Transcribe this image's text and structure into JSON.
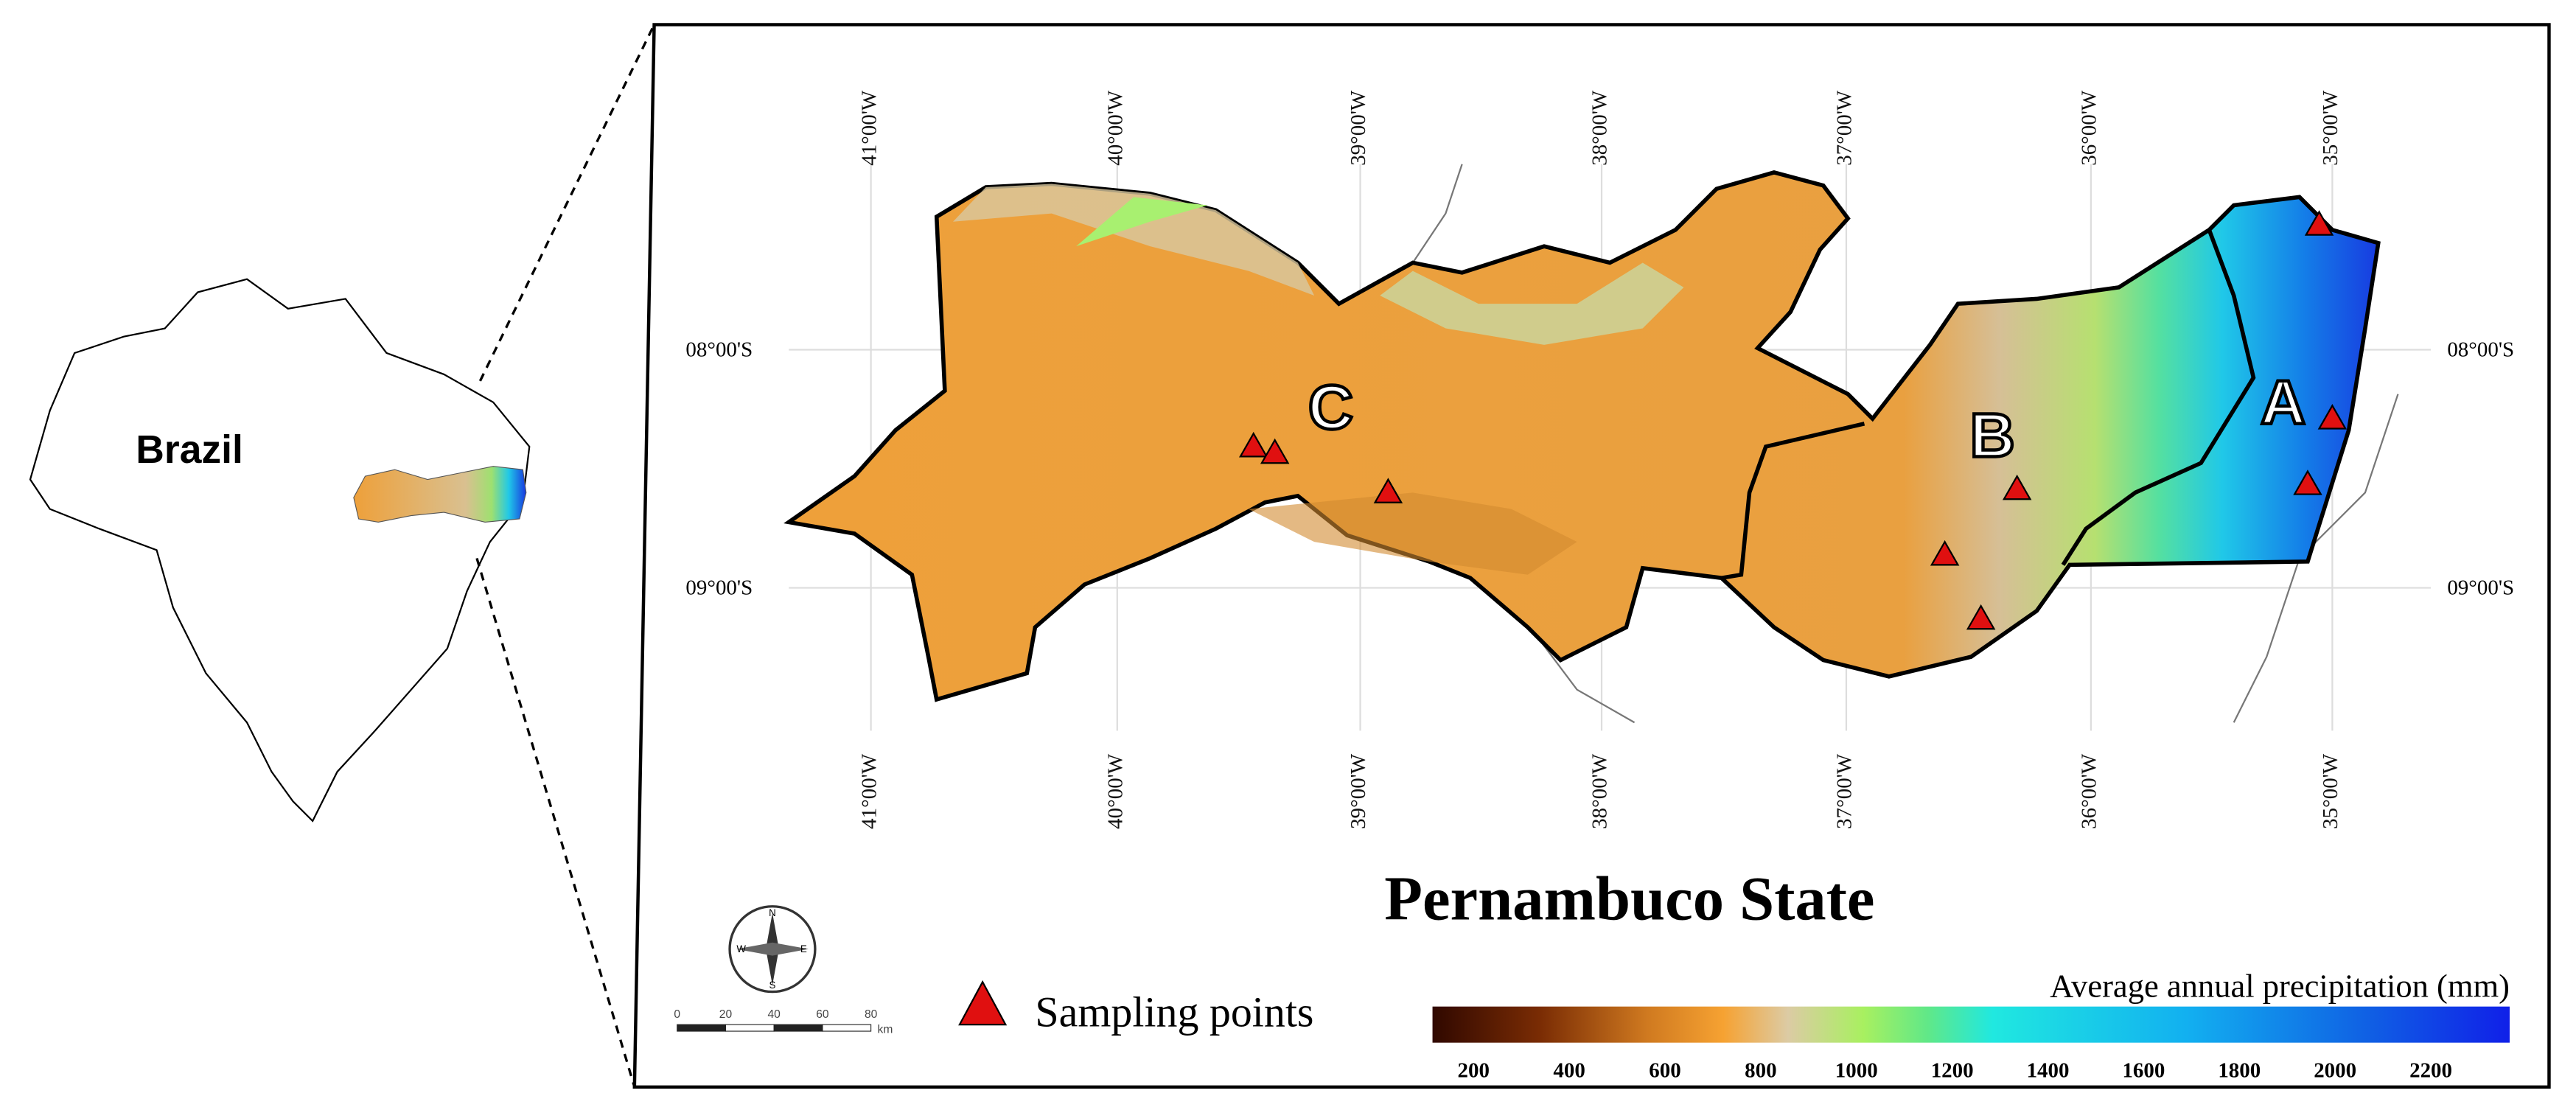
{
  "brazil_label": "Brazil",
  "title": "Pernambuco State",
  "legend": {
    "sampling_points": "Sampling points"
  },
  "colorbar": {
    "title": "Average annual precipitation (mm)",
    "ticks": [
      200,
      400,
      600,
      800,
      1000,
      1200,
      1400,
      1600,
      1800,
      2000,
      2200
    ]
  },
  "longitude_labels": [
    "41°00'W",
    "40°00'W",
    "39°00'W",
    "38°00'W",
    "37°00'W",
    "36°00'W",
    "35°00'W"
  ],
  "latitude_labels": [
    "08°00'S",
    "09°00'S"
  ],
  "regions": [
    "A",
    "B",
    "C"
  ],
  "scale_bar": {
    "ticks": [
      0,
      20,
      40,
      60,
      80
    ],
    "unit": "km"
  },
  "compass": [
    "N",
    "E",
    "S",
    "W"
  ]
}
